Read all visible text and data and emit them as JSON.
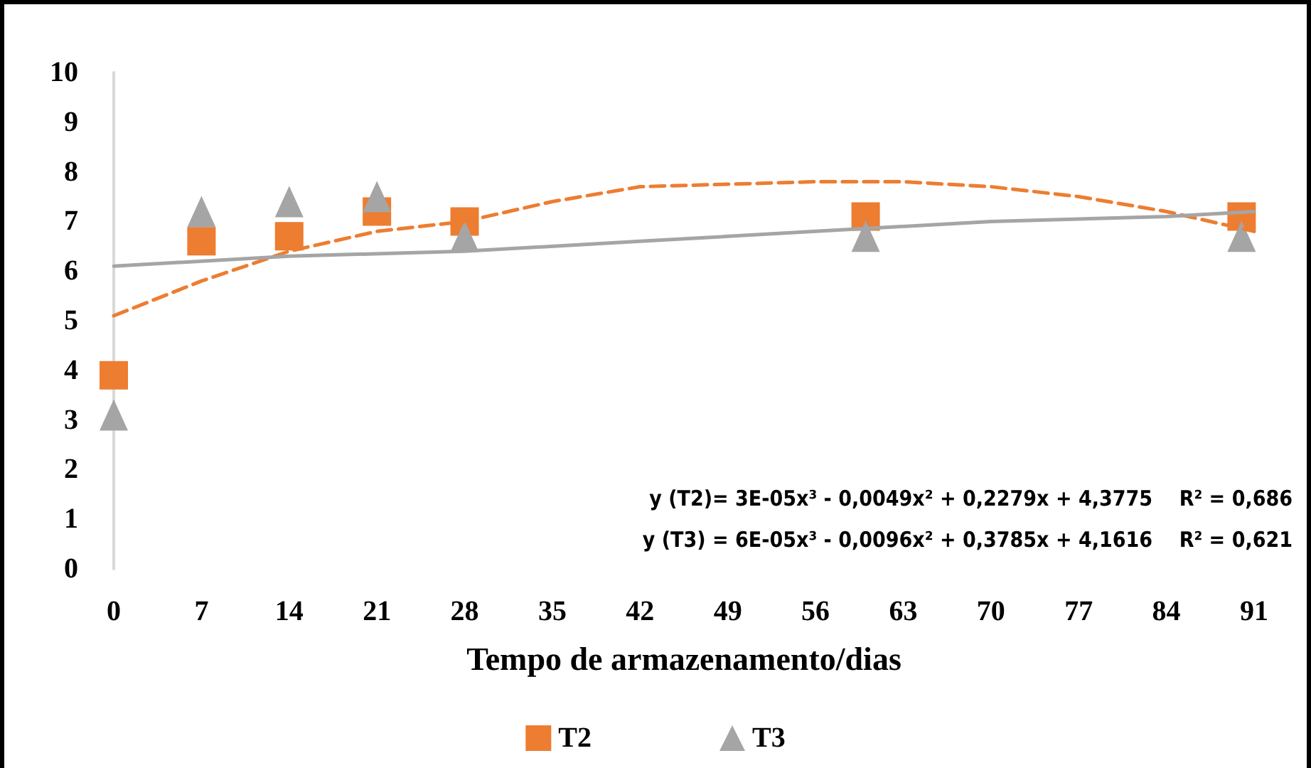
{
  "chart_data": {
    "type": "scatter",
    "xlabel": "Tempo de armazenamento/dias",
    "xlim": [
      0,
      91
    ],
    "xticks": [
      0,
      7,
      14,
      21,
      28,
      35,
      42,
      49,
      56,
      63,
      70,
      77,
      84,
      91
    ],
    "ylim": [
      0,
      10
    ],
    "yticks": [
      0,
      1,
      2,
      3,
      4,
      5,
      6,
      7,
      8,
      9,
      10
    ],
    "legend": "bottom",
    "annotations": [
      "y (T2)= 3E-05x³ - 0,0049x² + 0,2279x + 4,3775    R² = 0,686",
      "y (T3) = 6E-05x³ - 0,0096x² + 0,3785x + 4,1616    R² = 0,621"
    ],
    "series": [
      {
        "name": "T2",
        "marker": "square",
        "color": "#ed7d31",
        "x": [
          0,
          7,
          14,
          21,
          28,
          60,
          90
        ],
        "values": [
          3.9,
          6.6,
          6.7,
          7.2,
          7.0,
          7.1,
          7.1
        ]
      },
      {
        "name": "T3",
        "marker": "triangle",
        "color": "#a5a5a5",
        "x": [
          0,
          7,
          14,
          21,
          28,
          60,
          90
        ],
        "values": [
          3.1,
          7.2,
          7.4,
          7.5,
          6.7,
          6.7,
          6.7
        ]
      },
      {
        "type": "line",
        "color": "#ed7d31",
        "line_style": "dashed",
        "x": [
          0,
          7,
          14,
          21,
          28,
          35,
          42,
          49,
          56,
          63,
          70,
          77,
          84,
          91
        ],
        "values": [
          5.1,
          5.8,
          6.4,
          6.8,
          7.0,
          7.4,
          7.7,
          7.75,
          7.8,
          7.8,
          7.7,
          7.5,
          7.2,
          6.8
        ]
      },
      {
        "type": "line",
        "color": "#a5a5a5",
        "line_style": "solid",
        "x": [
          0,
          14,
          28,
          42,
          56,
          70,
          84,
          91
        ],
        "values": [
          6.1,
          6.3,
          6.4,
          6.6,
          6.8,
          7.0,
          7.1,
          7.2
        ]
      }
    ]
  }
}
